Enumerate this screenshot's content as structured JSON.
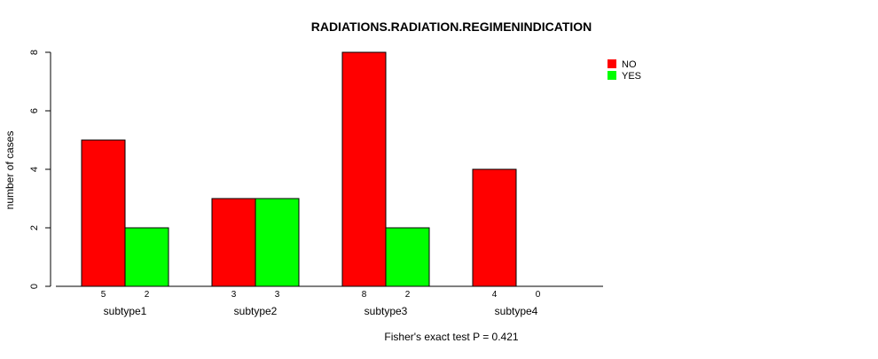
{
  "chart_data": {
    "type": "bar",
    "title": "RADIATIONS.RADIATION.REGIMENINDICATION",
    "ylabel": "number of cases",
    "xlabel": "",
    "categories": [
      "subtype1",
      "subtype2",
      "subtype3",
      "subtype4"
    ],
    "series": [
      {
        "name": "NO",
        "color": "#ff0000",
        "values": [
          5,
          3,
          8,
          4
        ]
      },
      {
        "name": "YES",
        "color": "#00ff00",
        "values": [
          2,
          3,
          2,
          0
        ]
      }
    ],
    "ylim": [
      0,
      8
    ],
    "yticks": [
      0,
      2,
      4,
      6,
      8
    ],
    "legend_position": "top-right",
    "grid": false,
    "footnote": "Fisher's exact test P = 0.421"
  }
}
